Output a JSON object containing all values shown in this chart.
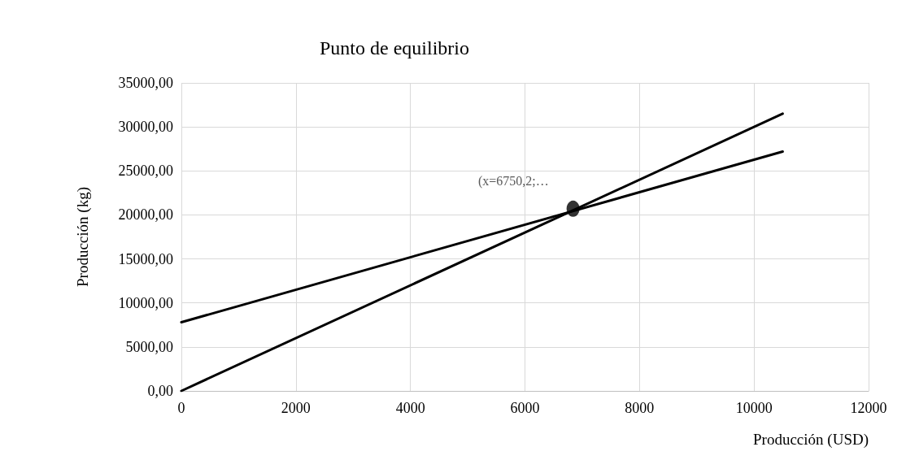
{
  "chart_data": {
    "type": "line",
    "title": "Punto de equilibrio",
    "xlabel": "Producción (USD)",
    "ylabel": "Producción (kg)",
    "series": [
      {
        "color": "#000000",
        "x": [
          0,
          10500
        ],
        "values": [
          7800,
          27200
        ],
        "marker": "none"
      },
      {
        "color": "#000000",
        "x": [
          0,
          10500
        ],
        "values": [
          0,
          31500
        ],
        "marker": "none"
      },
      {
        "type": "scatter",
        "color": "#000000",
        "x": [
          6840
        ],
        "values": [
          20700
        ],
        "marker": "circle"
      }
    ],
    "annotations": [
      "(x=6750,2;…"
    ],
    "xlim": [
      0,
      12000
    ],
    "xticks": [
      0,
      2000,
      4000,
      6000,
      8000,
      10000,
      12000
    ],
    "ylim": [
      0,
      35000
    ],
    "yticks": [
      {
        "value": 0,
        "label": "0,00"
      },
      {
        "value": 5000,
        "label": "5000,00"
      },
      {
        "value": 10000,
        "label": "10000,00"
      },
      {
        "value": 15000,
        "label": "15000,00"
      },
      {
        "value": 20000,
        "label": "20000,00"
      },
      {
        "value": 25000,
        "label": "25000,00"
      },
      {
        "value": 30000,
        "label": "30000,00"
      },
      {
        "value": 35000,
        "label": "35000,00"
      }
    ],
    "grid": true,
    "line_style": "solid"
  }
}
